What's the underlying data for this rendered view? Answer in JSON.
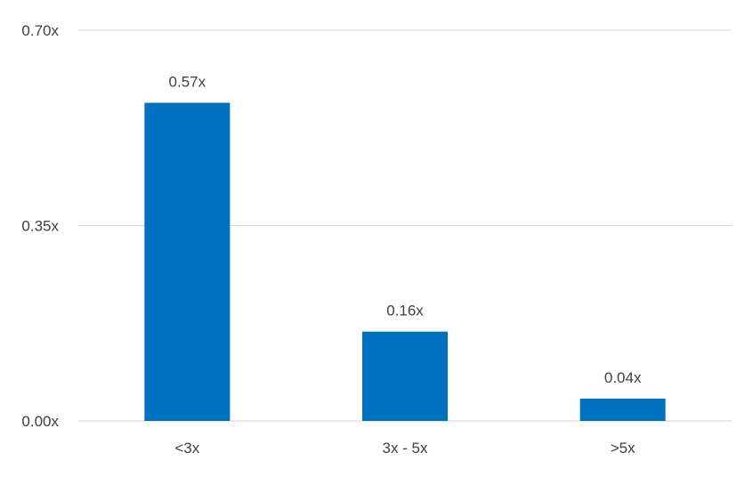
{
  "chart_data": {
    "type": "bar",
    "categories": [
      "<3x",
      "3x - 5x",
      ">5x"
    ],
    "values": [
      0.57,
      0.16,
      0.04
    ],
    "data_labels": [
      "0.57x",
      "0.16x",
      "0.04x"
    ],
    "title": "",
    "xlabel": "",
    "ylabel": "",
    "ylim": [
      0,
      0.7
    ],
    "y_ticks": [
      0,
      0.35,
      0.7
    ],
    "y_tick_labels": [
      "0.00x",
      "0.35x",
      "0.70x"
    ],
    "grid": true,
    "legend": "none",
    "bar_color": "#0070c0"
  }
}
